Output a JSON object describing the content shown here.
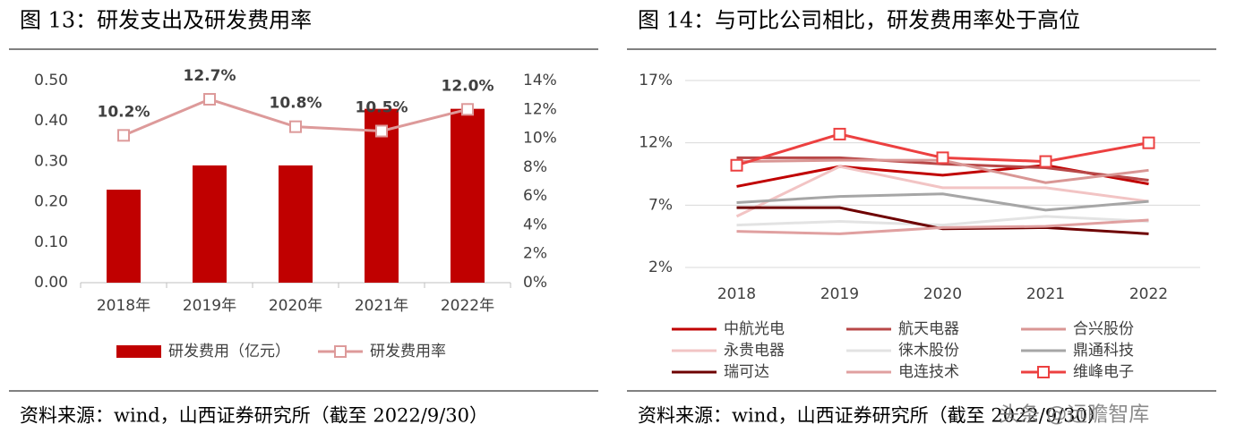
{
  "chart_data": [
    {
      "type": "bar",
      "title": "图 13：研发支出及研发费用率",
      "source": "资料来源：wind，山西证券研究所（截至 2022/9/30）",
      "categories": [
        "2018年",
        "2019年",
        "2020年",
        "2021年",
        "2022年"
      ],
      "series": [
        {
          "name": "研发费用（亿元）",
          "type": "bar",
          "color": "#c00000",
          "values": [
            0.23,
            0.29,
            0.29,
            0.43,
            0.43
          ]
        },
        {
          "name": "研发费用率",
          "type": "line",
          "axis": "y2",
          "marker": "square",
          "color": "#dd9a9a",
          "values": [
            10.2,
            12.7,
            10.8,
            10.5,
            12.0
          ],
          "value_labels": [
            "10.2%",
            "12.7%",
            "10.8%",
            "10.5%",
            "12.0%"
          ]
        }
      ],
      "ylim": [
        0,
        0.5
      ],
      "yticks": [
        {
          "value": 0,
          "label": "0.00"
        },
        {
          "value": 0.1,
          "label": "0.10"
        },
        {
          "value": 0.2,
          "label": "0.20"
        },
        {
          "value": 0.3,
          "label": "0.30"
        },
        {
          "value": 0.4,
          "label": "0.40"
        },
        {
          "value": 0.5,
          "label": "0.50"
        }
      ],
      "y2lim": [
        0,
        14
      ],
      "y2ticks": [
        {
          "value": 0,
          "label": "0%"
        },
        {
          "value": 2,
          "label": "2%"
        },
        {
          "value": 4,
          "label": "4%"
        },
        {
          "value": 6,
          "label": "6%"
        },
        {
          "value": 8,
          "label": "8%"
        },
        {
          "value": 10,
          "label": "10%"
        },
        {
          "value": 12,
          "label": "12%"
        },
        {
          "value": 14,
          "label": "14%"
        }
      ],
      "grid": false,
      "legend": "bottom"
    },
    {
      "type": "line",
      "title": "图 14：与可比公司相比，研发费用率处于高位",
      "source": "资料来源：wind，山西证券研究所（截至 2022/9/30）",
      "categories": [
        "2018",
        "2019",
        "2020",
        "2021",
        "2022"
      ],
      "series": [
        {
          "name": "中航光电",
          "color": "#c00000",
          "values": [
            8.5,
            10.1,
            9.4,
            10.2,
            8.7
          ]
        },
        {
          "name": "航天电器",
          "color": "#b84848",
          "values": [
            10.8,
            10.8,
            10.3,
            10.0,
            9.0
          ]
        },
        {
          "name": "合兴股份",
          "color": "#d99694",
          "values": [
            10.5,
            10.6,
            10.6,
            8.8,
            9.8
          ]
        },
        {
          "name": "永贵电器",
          "color": "#f2c4c4",
          "values": [
            6.1,
            10.1,
            8.4,
            8.4,
            7.3
          ]
        },
        {
          "name": "徕木股份",
          "color": "#e3e3e3",
          "values": [
            5.4,
            5.7,
            5.4,
            6.1,
            5.7
          ]
        },
        {
          "name": "鼎通科技",
          "color": "#a6a6a6",
          "values": [
            7.2,
            7.7,
            7.9,
            6.6,
            7.3
          ]
        },
        {
          "name": "瑞可达",
          "color": "#6e0000",
          "values": [
            6.8,
            6.8,
            5.1,
            5.2,
            4.7
          ]
        },
        {
          "name": "电连技术",
          "color": "#e0a0a0",
          "values": [
            4.9,
            4.7,
            5.2,
            5.3,
            5.8
          ]
        },
        {
          "name": "维峰电子",
          "color": "#ec4040",
          "marker": "square",
          "values": [
            10.2,
            12.7,
            10.8,
            10.5,
            12.0
          ]
        }
      ],
      "ylim": [
        2,
        17
      ],
      "yticks": [
        {
          "value": 2,
          "label": "2%"
        },
        {
          "value": 7,
          "label": "7%"
        },
        {
          "value": 12,
          "label": "12%"
        },
        {
          "value": 17,
          "label": "17%"
        }
      ],
      "grid": true,
      "legend": "bottom"
    }
  ],
  "watermark": "头条 @远瞻智库"
}
